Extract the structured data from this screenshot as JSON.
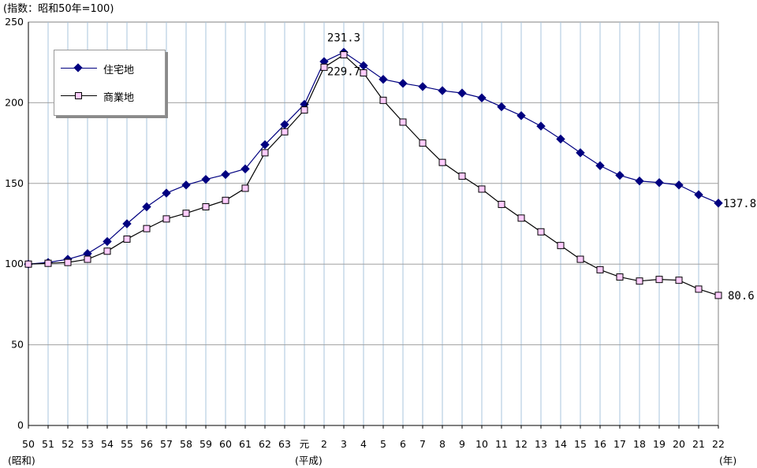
{
  "unit_label": "(指数：昭和50年=100)",
  "era_labels": {
    "showa": "(昭和)",
    "heisei": "(平成)",
    "year_unit": "(年)"
  },
  "colors": {
    "residential": "#000080",
    "commercial": "#000000",
    "commercial_fill": "#FFCCFF",
    "grid": "#a0a0a0",
    "vgrid": "#a9c4de"
  },
  "chart_data": {
    "type": "line",
    "title": "",
    "xlabel": "",
    "ylabel": "",
    "ylim": [
      0,
      250
    ],
    "yticks": [
      0,
      50,
      100,
      150,
      200,
      250
    ],
    "grid": true,
    "legend_position": "top-left",
    "categories": [
      "50",
      "51",
      "52",
      "53",
      "54",
      "55",
      "56",
      "57",
      "58",
      "59",
      "60",
      "61",
      "62",
      "63",
      "元",
      "2",
      "3",
      "4",
      "5",
      "6",
      "7",
      "8",
      "9",
      "10",
      "11",
      "12",
      "13",
      "14",
      "15",
      "16",
      "17",
      "18",
      "19",
      "20",
      "21",
      "22"
    ],
    "series": [
      {
        "name": "住宅地",
        "marker": "diamond",
        "values": [
          100,
          101,
          103,
          106.5,
          114,
          125,
          135.5,
          144,
          149,
          152.5,
          155.5,
          159,
          174,
          186.5,
          199,
          225.5,
          231.3,
          223,
          214.5,
          212,
          210,
          207.5,
          206,
          203,
          197.5,
          192,
          185.5,
          177.5,
          169,
          161,
          155,
          151.5,
          150.5,
          149,
          143,
          137.8
        ]
      },
      {
        "name": "商業地",
        "marker": "square",
        "values": [
          100,
          100.5,
          101,
          103,
          108,
          115.5,
          122,
          128,
          131.5,
          135.5,
          139.5,
          147,
          169,
          182,
          195.5,
          222,
          229.7,
          218.5,
          201.5,
          188,
          175,
          163,
          154.5,
          146.5,
          137,
          128.5,
          120,
          111.5,
          103,
          96.5,
          92,
          89.5,
          90.5,
          90,
          84.5,
          80.6
        ]
      }
    ],
    "annotations": [
      "231.3",
      "229.7",
      "137.8",
      "80.6"
    ]
  }
}
